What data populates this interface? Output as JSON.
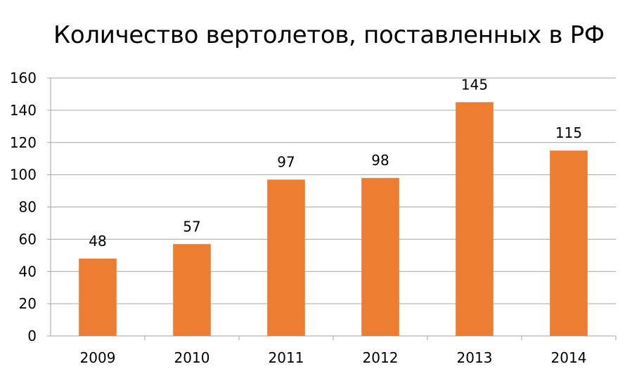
{
  "chart_data": {
    "type": "bar",
    "title": "Количество вертолетов, поставленных в РФ",
    "categories": [
      "2009",
      "2010",
      "2011",
      "2012",
      "2013",
      "2014"
    ],
    "values": [
      48,
      57,
      97,
      98,
      145,
      115
    ],
    "data_labels": [
      "48",
      "57",
      "97",
      "98",
      "145",
      "115"
    ],
    "yticks": [
      "0",
      "20",
      "40",
      "60",
      "80",
      "100",
      "120",
      "140",
      "160"
    ],
    "ylim": [
      0,
      160
    ],
    "ytick_step": 20,
    "grid": true,
    "legend": "none",
    "bar_color": "#ED7D31",
    "grid_color": "#A6A6A6"
  }
}
